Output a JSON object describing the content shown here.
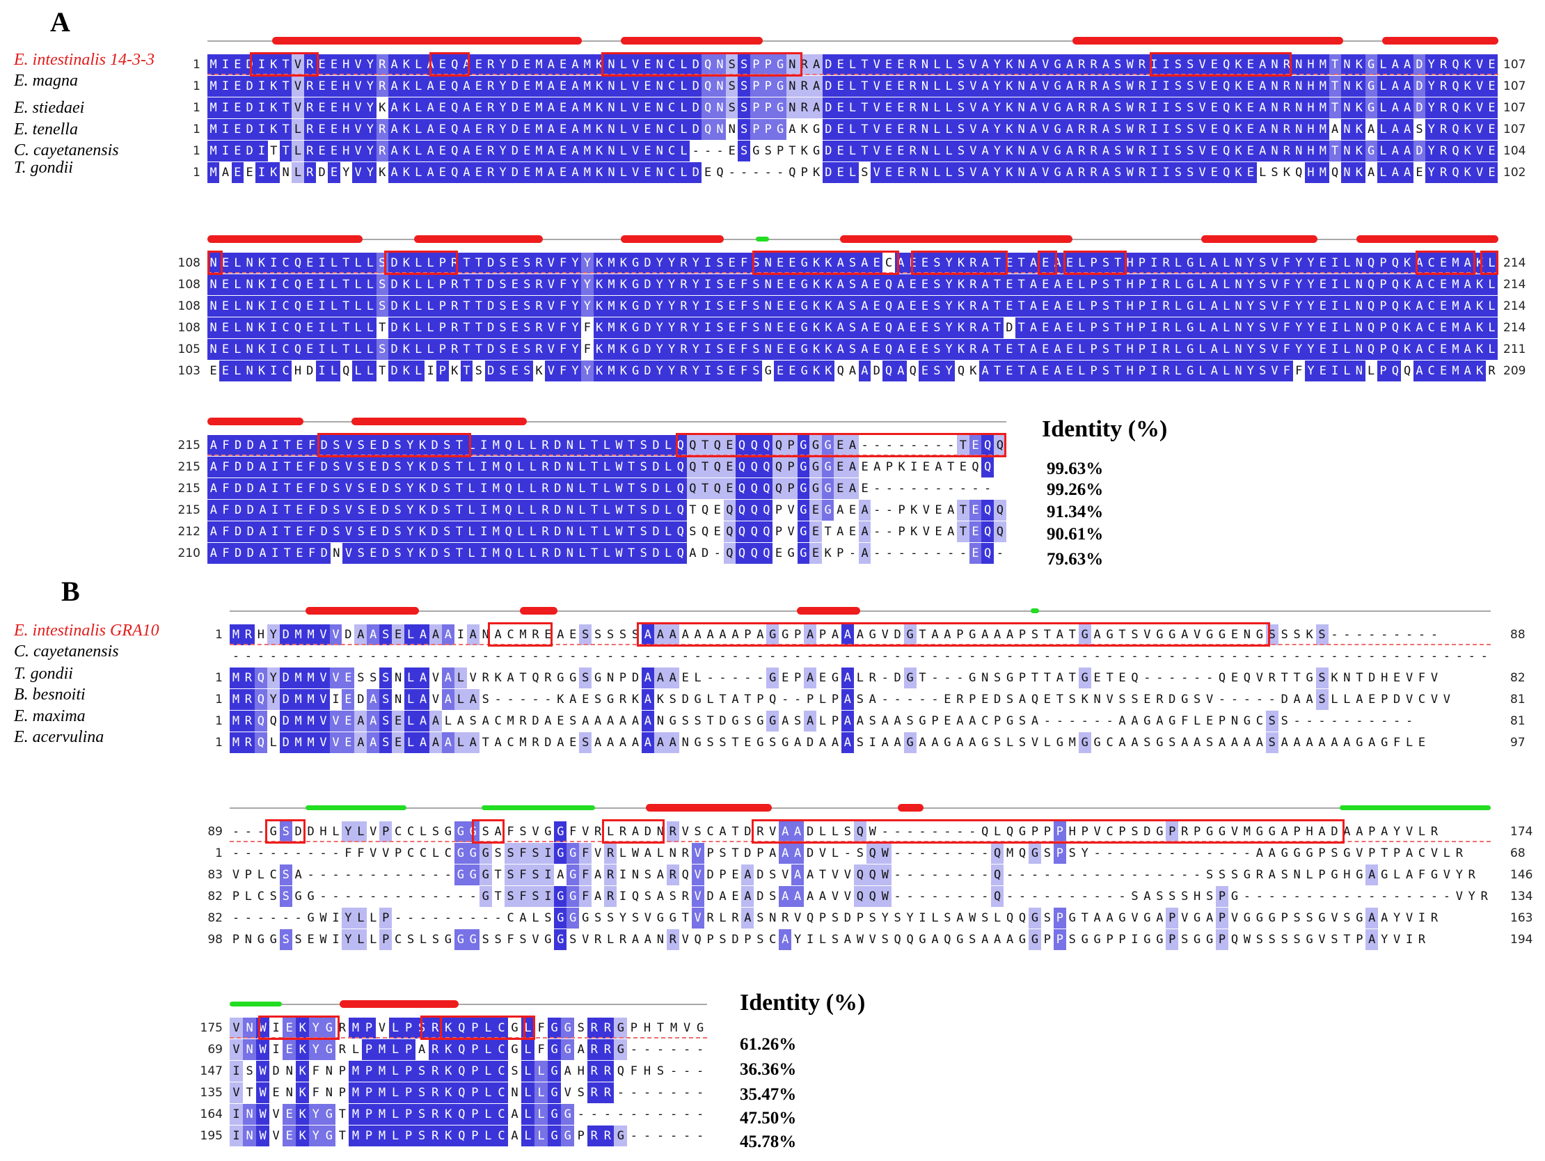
{
  "panelA": {
    "label": "A",
    "species": [
      "E. intestinalis 14-3-3",
      "E. magna",
      "E. stiedaei",
      "E. tenella",
      "C. cayetanensis",
      "T. gondii"
    ],
    "identity_title": "Identity (%)",
    "identities": [
      "99.63%",
      "99.26%",
      "91.34%",
      "90.61%",
      "79.63%"
    ],
    "blocks": [
      {
        "rows": [
          {
            "start": "1",
            "end": "107",
            "seq": "MIEDIKTVREEHVYRAKLAEQAERYDEMAEAMKNLVENCLDQNSSPPGNRADELTVEERNLLSVAYKNAVGARRASWRIISSVEQKEANRNHMTNKGLAADYRQKVE"
          },
          {
            "start": "1",
            "end": "107",
            "seq": "MIEDIKTVREEHVYRAKLAEQAERYDEMAEAMKNLVENCLDQNSSPPGNRADELTVEERNLLSVAYKNAVGARRASWRIISSVEQKEANRNHMTNKGLAADYRQKVE"
          },
          {
            "start": "1",
            "end": "107",
            "seq": "MIEDIKTVREEHVYKAKLAEQAERYDEMAEAMKNLVENCLDQNSSPPGNRADELTVEERNLLSVAYKNAVGARRASWRIISSVEQKEANRNHMTNKGLAADYRQKVE"
          },
          {
            "start": "1",
            "end": "107",
            "seq": "MIEDIKTLREEHVYRAKLAEQAERYDEMAEAMKNLVENCLDQNNSPPGAKGDELTVEERNLLSVAYKNAVGARRASWRIISSVEQKEANRNHMANKALAASYRQKVE"
          },
          {
            "start": "1",
            "end": "104",
            "seq": "MIEDITTLREEHVYRAKLAEQAERYDEMAEAMKNLVENCL---ESGSPTKGDELTVEERNLLSVAYKNAVGARRASWRIISSVEQKEANRNHMTNKGLAADYRQKVE"
          },
          {
            "start": "1",
            "end": "102",
            "seq": "MAEEIKNLRDEYVYKAKLAEQAERYDEMAEAMKNLVENCLDEQ-----QPKDELSVEERNLLSVAYKNAVGARRASWRIISSVEQKELSKQHMQNKALAAEYRQKVE"
          }
        ]
      },
      {
        "rows": [
          {
            "start": "108",
            "end": "214",
            "seq": "NELNKICQEILTLLSDKLLPRTTDSESRVFYYKMKGDYYRYISEFSNEEGKKASAECAEESYKRATETAEAELPSTHPIRLGLALNYSVFYYEILNQPQKACEMAKL"
          },
          {
            "start": "108",
            "end": "214",
            "seq": "NELNKICQEILTLLSDKLLPRTTDSESRVFYYKMKGDYYRYISEFSNEEGKKASAEQAEESYKRATETAEAELPSTHPIRLGLALNYSVFYYEILNQPQKACEMAKL"
          },
          {
            "start": "108",
            "end": "214",
            "seq": "NELNKICQEILTLLSDKLLPRTTDSESRVFYYKMKGDYYRYISEFSNEEGKKASAEQAEESYKRATETAEAELPSTHPIRLGLALNYSVFYYEILNQPQKACEMAKL"
          },
          {
            "start": "108",
            "end": "214",
            "seq": "NELNKICQEILTLLTDKLLPRTTDSESRVFYFKMKGDYYRYISEFSNEEGKKASAEQAEESYKRATDTAEAELPSTHPIRLGLALNYSVFYYEILNQPQKACEMAKL"
          },
          {
            "start": "105",
            "end": "211",
            "seq": "NELNKICQEILTLLSDKLLPRTTDSESRVFYFKMKGDYYRYISEFSNEEGKKASAEQAEESYKRATETAEAELPSTHPIRLGLALNYSVFYYEILNQPQKACEMAKL"
          },
          {
            "start": "103",
            "end": "209",
            "seq": "EELNKICHDILQLLTDKLIPKTSDSESKVFYYKMKGDYYRYISEFSGEEGKKQAADQAQESYQKATETAEAELPSTHPIRLGLALNYSVFFYEILNLPQQACEMAKR"
          }
        ]
      },
      {
        "rows": [
          {
            "start": "215",
            "end": "",
            "seq": "AFDDAITEFDSVSEDSYKDSTLIMQLLRDNLTLWTSDLQQTQEQQQQPGGGEA--------TEQQ"
          },
          {
            "start": "215",
            "end": "",
            "seq": "AFDDAITEFDSVSEDSYKDSTLIMQLLRDNLTLWTSDLQQTQEQQQQPGGGEAEAPKIEATEQQ"
          },
          {
            "start": "215",
            "end": "",
            "seq": "AFDDAITEFDSVSEDSYKDSTLIMQLLRDNLTLWTSDLQQTQEQQQQPGGGEAE----------"
          },
          {
            "start": "215",
            "end": "",
            "seq": "AFDDAITEFDSVSEDSYKDSTLIMQLLRDNLTLWTSDLQTQEQQQQPVGEGAEA--PKVEATEQQ"
          },
          {
            "start": "212",
            "end": "",
            "seq": "AFDDAITEFDSVSEDSYKDSTLIMQLLRDNLTLWTSDLQSQEQQQQPVGETAEA--PKVEATEQQ"
          },
          {
            "start": "210",
            "end": "",
            "seq": "AFDDAITEFDNVSEDSYKDSTLIMQLLRDNLTLWTSDLQAD-QQQQEGGEKP-A--------EQ-"
          }
        ]
      }
    ]
  },
  "panelB": {
    "label": "B",
    "species": [
      "E. intestinalis GRA10",
      "C. cayetanensis",
      "T. gondii",
      "B. besnoiti",
      "E. maxima",
      "E. acervulina"
    ],
    "identity_title": "Identity (%)",
    "identities": [
      "61.26%",
      "36.36%",
      "35.47%",
      "47.50%",
      "45.78%"
    ],
    "blocks": [
      {
        "rows": [
          {
            "start": "1",
            "end": "88",
            "seq": "MRHYDMMVVDAASELAAAIANACMREAESSSSSAAAAAAAAPAGGPAPAAAGVDGTAAPGAAAPSTATGAGTSVGGAVGGENGSSSKS---------"
          },
          {
            "start": "",
            "end": "",
            "seq": "-----------------------------------------------------------------------------------------------------"
          },
          {
            "start": "1",
            "end": "82",
            "seq": "MRQYDMMVVESSSNLAVALVRKATQRGGSGNPDAAAEL-----GEPAEGALR-DGT---GNSGPTTATGETEQ------QEQVRTTGSKNTDHEVFV"
          },
          {
            "start": "1",
            "end": "81",
            "seq": "MRQYDMMVIEDASNLAVALAS-----KAESGRKAKSDGLTATPQ--PLPASA-----ERPEDSAQETSKNVSSERDGSV-----DAASLLAEPDVCVV"
          },
          {
            "start": "1",
            "end": "81",
            "seq": "MRQQDMMVVEAASELAALASACMRDAESAAAAAANGSSTDGSGGASALPAASAASGPEAACPGSA------AAGAGFLEPNGCSS----------"
          },
          {
            "start": "1",
            "end": "97",
            "seq": "MRQLDMMVVEAASELAAALATACMRDAESAAAAAAANGSSTEGSGADAAASIAAGAAGAAGSLSVLGMGGCAASGSAASAAAASAAAAAAGAGFLE"
          }
        ]
      },
      {
        "rows": [
          {
            "start": "89",
            "end": "174",
            "seq": "---GSDDHLYLVPCCLSGGGSAFSVGGFVRLRADNRVSCATDRVAADLLSQW--------QLQGPPPHPVCPSDGPRPGGVMGGAPHADAAPAYVLR"
          },
          {
            "start": "1",
            "end": "68",
            "seq": "---------FFVVPCCLCGGGSSFSIGGFVRLWALNRVPSTDPAAADVL-SQW--------QMQGSPSY-------------AAGGGPSGVPTPACVLR"
          },
          {
            "start": "83",
            "end": "146",
            "seq": "VPLCSA------------GGGTSFSIAGFARINSARQVDPEADSVAATVVQQW--------Q----------------SSSGRASNLPGHGAGLAFGVYR"
          },
          {
            "start": "82",
            "end": "134",
            "seq": "PLCSSGG-------------GTSFSIGGFARIQSASRVDAEADSAAAAVVQQW--------Q----------SASSSHSPG-----------------VYR"
          },
          {
            "start": "82",
            "end": "163",
            "seq": "------GWIYLLP---------CALSGGGSSYSVGGTVRLRASNRVQPSDPSYSYILSAWSLQQGSPGTAAGVGAPVGAPVGGGPSSGVSGAAYVIR"
          },
          {
            "start": "98",
            "end": "194",
            "seq": "PNGGSSEWIYLLPCSLSGGGSSFSVGGSVRLRAANRVQPSDPSCAYILSAWVSQQGAQGSAAAGGPPSGGPPIGGPSGGPQWSSSSGVSTPAYVIR"
          }
        ]
      },
      {
        "rows": [
          {
            "start": "175",
            "end": "",
            "seq": "VNWIEKYGRMPVLPSRKQPLCGLFGGSRRGPHTMVG"
          },
          {
            "start": "69",
            "end": "",
            "seq": "VNWIEKYGRLPMLPARKQPLCGLFGGARRG------"
          },
          {
            "start": "147",
            "end": "",
            "seq": "ISWDNKFNPMPMLPSRKQPLCSLLGAHRRQFHS---"
          },
          {
            "start": "135",
            "end": "",
            "seq": "VTWENKFNPMPMLPSRKQPLCNLLGVSRR-------"
          },
          {
            "start": "164",
            "end": "",
            "seq": "INWVEKYGTMPMLPSRKQPLCALLGG----------"
          },
          {
            "start": "195",
            "end": "",
            "seq": "INWVEKYGTMPMLPSRKQPLCALLGGPRRG------"
          }
        ]
      }
    ]
  }
}
